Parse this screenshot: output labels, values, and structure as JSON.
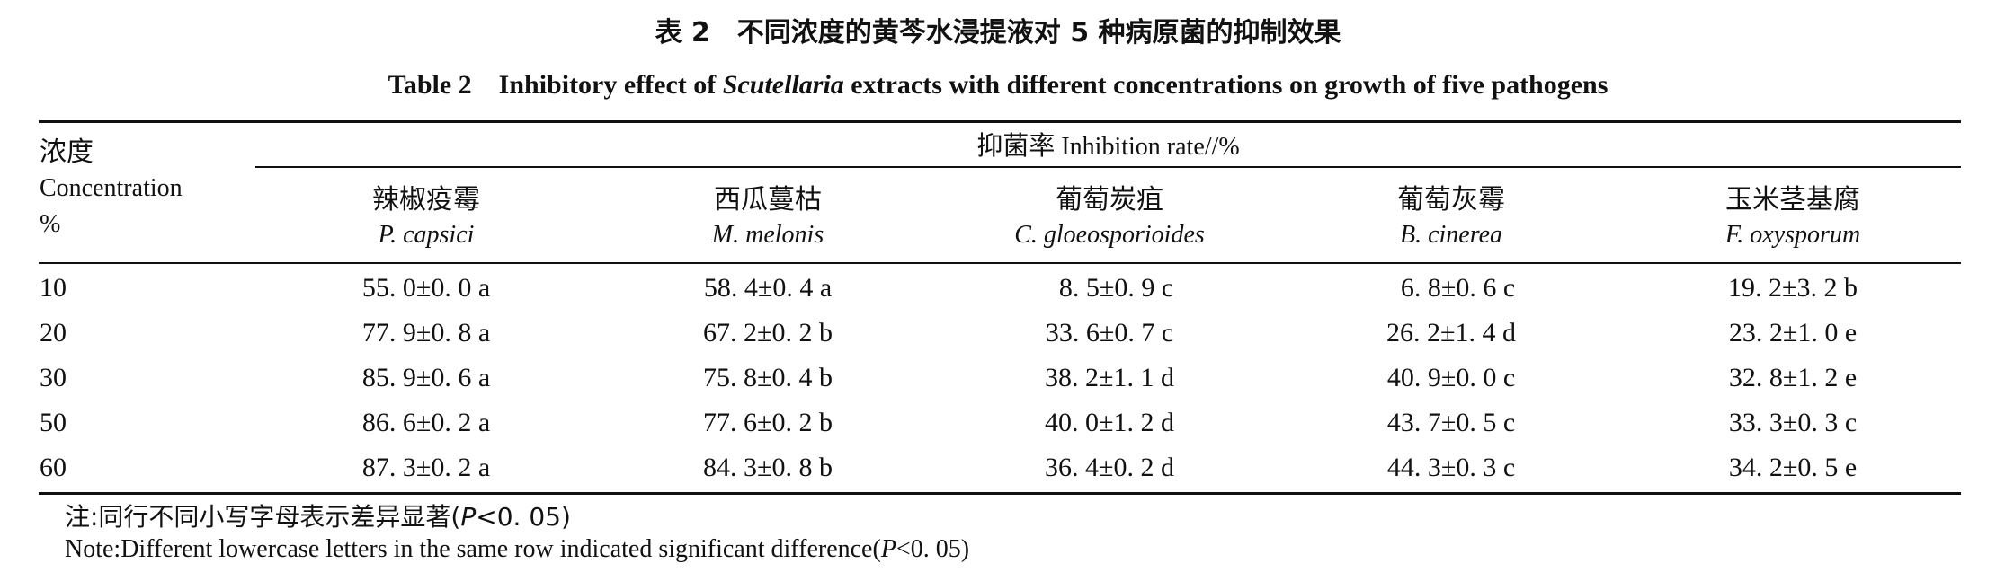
{
  "title": {
    "cn": "表 2　不同浓度的黄芩水浸提液对 5 种病原菌的抑制效果",
    "en_prefix": "Table 2　Inhibitory effect of ",
    "en_italic": "Scutellaria",
    "en_suffix": " extracts with different concentrations on growth of five pathogens"
  },
  "table": {
    "conc_header_cn": "浓度",
    "conc_header_en": "Concentration",
    "conc_header_unit": "%",
    "spanner_cn": "抑菌率",
    "spanner_en": " Inhibition rate//%",
    "columns": [
      {
        "cn": "辣椒疫霉",
        "sci": "P. capsici"
      },
      {
        "cn": "西瓜蔓枯",
        "sci": "M. melonis"
      },
      {
        "cn": "葡萄炭疽",
        "sci": "C. gloeosporioides"
      },
      {
        "cn": "葡萄灰霉",
        "sci": "B. cinerea"
      },
      {
        "cn": "玉米茎基腐",
        "sci": "F. oxysporum"
      }
    ],
    "rows": [
      {
        "conc": "10",
        "values": [
          "55. 0±0. 0 a",
          "58. 4±0. 4 a",
          "  8. 5±0. 9 c",
          "  6. 8±0. 6 c",
          "19. 2±3. 2 b"
        ]
      },
      {
        "conc": "20",
        "values": [
          "77. 9±0. 8 a",
          "67. 2±0. 2 b",
          "33. 6±0. 7 c",
          "26. 2±1. 4 d",
          "23. 2±1. 0 e"
        ]
      },
      {
        "conc": "30",
        "values": [
          "85. 9±0. 6 a",
          "75. 8±0. 4 b",
          "38. 2±1. 1 d",
          "40. 9±0. 0 c",
          "32. 8±1. 2 e"
        ]
      },
      {
        "conc": "50",
        "values": [
          "86. 6±0. 2 a",
          "77. 6±0. 2 b",
          "40. 0±1. 2 d",
          "43. 7±0. 5 c",
          "33. 3±0. 3 c"
        ]
      },
      {
        "conc": "60",
        "values": [
          "87. 3±0. 2 a",
          "84. 3±0. 8 b",
          "36. 4±0. 2 d",
          "44. 3±0. 3 c",
          "34. 2±0. 5 e"
        ]
      }
    ]
  },
  "notes": {
    "cn_prefix": "注:同行不同小写字母表示差异显著(",
    "cn_italic": "P",
    "cn_suffix": "<0. 05)",
    "en_prefix": "Note:Different lowercase letters in the same row indicated significant difference(",
    "en_italic": "P",
    "en_suffix": "<0. 05)"
  }
}
